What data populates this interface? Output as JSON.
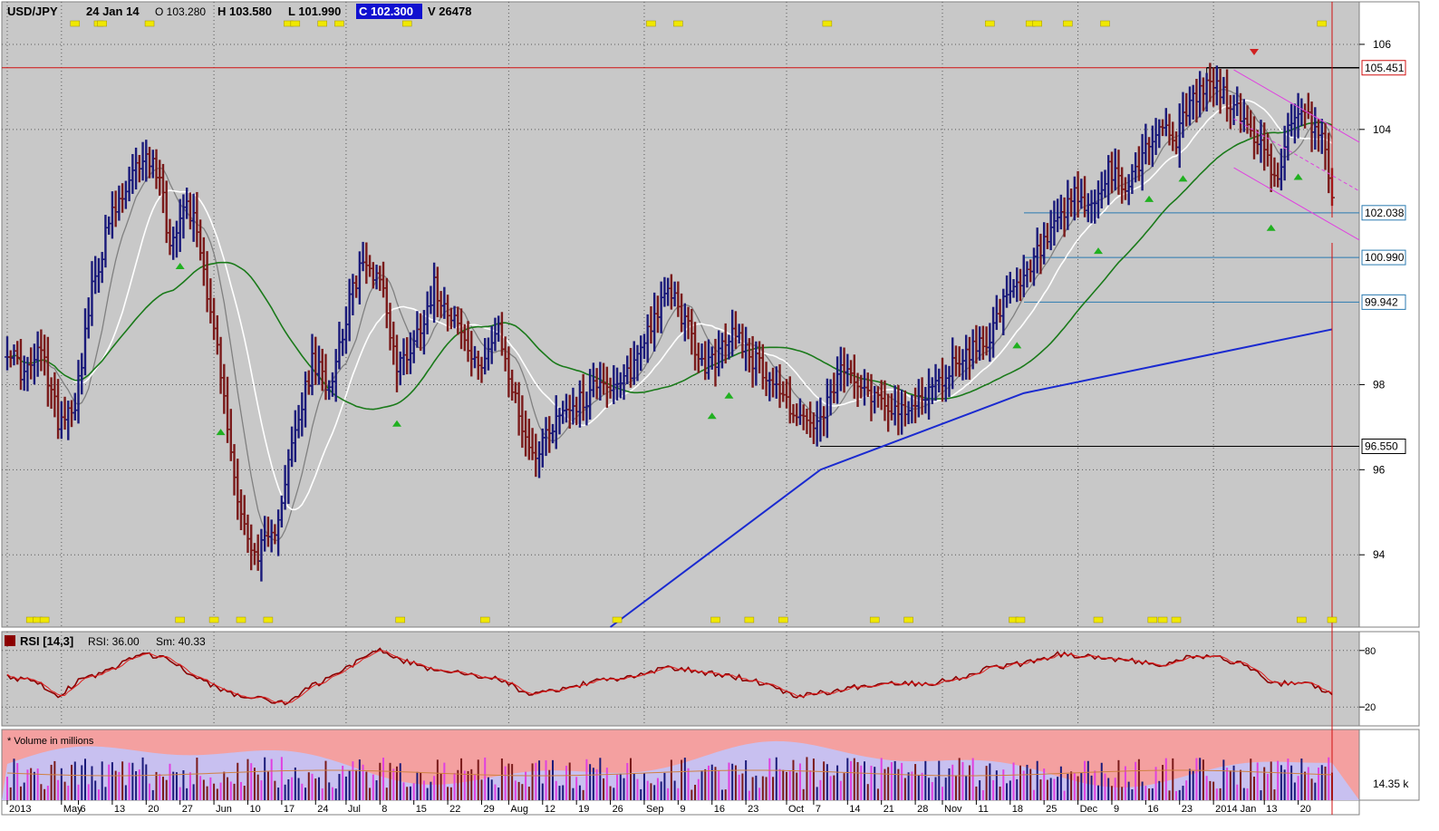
{
  "header": {
    "symbol": "USD/JPY",
    "date": "24 Jan 14",
    "open": "O 103.280",
    "high": "H 103.580",
    "low": "L 101.990",
    "close": "C 102.300",
    "volume": "V 26478"
  },
  "colors": {
    "background": "#c8c8c8",
    "up_bar": "#1a1a7a",
    "down_bar": "#7a1a1a",
    "ma_fast": "#808080",
    "ma_mid": "#ffffff",
    "ma_slow": "#1a7a1a",
    "ma_long": "#1a2ad0",
    "resistance": "#d01010",
    "channel": "#e040e0",
    "support": "#2a7ab0",
    "rsi": "#8b0000",
    "rsi_signal": "#e02020",
    "volume_top": "#f4a0a0",
    "volume_band": "#c8c0f0",
    "marker": "#f0e800",
    "signal_up": "#20b020",
    "signal_down": "#d02020"
  },
  "price_axis": {
    "ticks": [
      "106",
      "104",
      "98",
      "96",
      "94"
    ],
    "tick_values": [
      106,
      104,
      98,
      96,
      94
    ],
    "range": [
      92.3,
      107
    ]
  },
  "price_levels": [
    {
      "label": "105.451",
      "value": 105.45,
      "kind": "resistance"
    },
    {
      "label": "102.038",
      "value": 102.04,
      "kind": "support"
    },
    {
      "label": "100.990",
      "value": 100.99,
      "kind": "support"
    },
    {
      "label": "99.942",
      "value": 99.94,
      "kind": "support"
    },
    {
      "label": "96.550",
      "value": 96.55,
      "kind": "support"
    }
  ],
  "rsi_panel": {
    "title": "RSI [14,3]",
    "value_text": "RSI: 36.00",
    "smooth_text": "Sm: 40.33",
    "ticks": [
      "80",
      "20"
    ],
    "tick_values": [
      80,
      20
    ],
    "range": [
      0,
      100
    ]
  },
  "volume_panel": {
    "title": "* Volume in millions",
    "axis_label": "14.35 k"
  },
  "time_axis": {
    "labels": [
      "2013",
      "May",
      "6",
      "13",
      "20",
      "27",
      "Jun",
      "10",
      "17",
      "24",
      "Jul",
      "8",
      "15",
      "22",
      "29",
      "Aug",
      "12",
      "19",
      "26",
      "Sep",
      "9",
      "16",
      "23",
      "Oct",
      "7",
      "14",
      "21",
      "28",
      "Nov",
      "11",
      "18",
      "25",
      "Dec",
      "9",
      "16",
      "23",
      "2014 Jan",
      "13",
      "20"
    ],
    "bar_index": [
      0,
      16,
      21,
      31,
      41,
      51,
      61,
      71,
      81,
      91,
      100,
      110,
      120,
      130,
      140,
      148,
      158,
      168,
      178,
      188,
      198,
      208,
      218,
      230,
      238,
      248,
      258,
      268,
      276,
      286,
      296,
      306,
      316,
      326,
      336,
      346,
      356,
      371,
      381
    ]
  },
  "chart_data": {
    "type": "ohlc",
    "bar_count": 392,
    "price_anchors": [
      [
        0,
        98.9
      ],
      [
        5,
        98.2
      ],
      [
        10,
        98.8
      ],
      [
        15,
        97.2
      ],
      [
        20,
        97.6
      ],
      [
        25,
        100.2
      ],
      [
        30,
        101.8
      ],
      [
        35,
        102.5
      ],
      [
        40,
        103.4
      ],
      [
        45,
        103
      ],
      [
        48,
        101.2
      ],
      [
        52,
        102.4
      ],
      [
        56,
        101.7
      ],
      [
        62,
        98.8
      ],
      [
        67,
        95.8
      ],
      [
        72,
        94
      ],
      [
        78,
        94.3
      ],
      [
        84,
        96.5
      ],
      [
        90,
        98.5
      ],
      [
        95,
        98
      ],
      [
        100,
        99.6
      ],
      [
        104,
        100.8
      ],
      [
        110,
        100.6
      ],
      [
        115,
        98.4
      ],
      [
        120,
        99
      ],
      [
        126,
        100.3
      ],
      [
        132,
        99.6
      ],
      [
        138,
        98.4
      ],
      [
        145,
        99.2
      ],
      [
        150,
        97.6
      ],
      [
        155,
        96.3
      ],
      [
        160,
        97
      ],
      [
        165,
        97.5
      ],
      [
        170,
        97.6
      ],
      [
        175,
        98.2
      ],
      [
        180,
        97.8
      ],
      [
        185,
        98.5
      ],
      [
        190,
        99.5
      ],
      [
        196,
        100.2
      ],
      [
        200,
        99.5
      ],
      [
        205,
        98.4
      ],
      [
        210,
        98.7
      ],
      [
        215,
        99.3
      ],
      [
        220,
        98.6
      ],
      [
        225,
        98.2
      ],
      [
        230,
        97.6
      ],
      [
        235,
        97.1
      ],
      [
        240,
        97
      ],
      [
        245,
        98.2
      ],
      [
        250,
        98.3
      ],
      [
        255,
        97.8
      ],
      [
        260,
        97.6
      ],
      [
        265,
        97.2
      ],
      [
        270,
        97.8
      ],
      [
        275,
        98
      ],
      [
        280,
        98.6
      ],
      [
        285,
        98.8
      ],
      [
        290,
        99.2
      ],
      [
        295,
        100
      ],
      [
        300,
        100.4
      ],
      [
        305,
        101.2
      ],
      [
        310,
        101.7
      ],
      [
        315,
        102.4
      ],
      [
        320,
        102.1
      ],
      [
        325,
        103
      ],
      [
        330,
        102.6
      ],
      [
        335,
        103.4
      ],
      [
        340,
        104.1
      ],
      [
        345,
        103.8
      ],
      [
        350,
        104.7
      ],
      [
        355,
        105.1
      ],
      [
        358,
        104.9
      ],
      [
        362,
        104.5
      ],
      [
        366,
        104.1
      ],
      [
        370,
        103.6
      ],
      [
        374,
        102.8
      ],
      [
        378,
        103.9
      ],
      [
        382,
        104.3
      ],
      [
        386,
        104.1
      ],
      [
        389,
        103.6
      ],
      [
        391,
        102.3
      ]
    ],
    "ma_fast_offset": 0,
    "moving_averages": [
      {
        "key": "ma_fast",
        "period": 10
      },
      {
        "key": "ma_mid",
        "period": 20
      },
      {
        "key": "ma_slow",
        "period": 50
      }
    ],
    "ma_long": {
      "points": [
        [
          178,
          92.3
        ],
        [
          240,
          96
        ],
        [
          300,
          97.8
        ],
        [
          391,
          99.3
        ]
      ]
    },
    "channel": {
      "upper": [
        [
          362,
          105.4
        ],
        [
          391,
          104.2
        ]
      ],
      "lower": [
        [
          362,
          103.1
        ],
        [
          391,
          101.8
        ]
      ]
    },
    "signals_up": [
      51,
      63,
      115,
      208,
      213,
      298,
      322,
      337,
      347,
      373,
      381
    ],
    "signals_down": [
      368
    ],
    "event_markers_top": [
      20,
      27,
      28,
      42,
      83,
      85,
      93,
      98,
      118,
      190,
      198,
      242,
      290,
      302,
      304,
      313,
      324,
      388
    ],
    "event_markers_bottom": [
      7,
      9,
      11,
      51,
      61,
      69,
      77,
      116,
      141,
      180,
      209,
      219,
      229,
      256,
      266,
      297,
      299,
      322,
      338,
      341,
      345,
      382,
      391
    ],
    "rsi": {
      "values": [
        [
          0,
          52
        ],
        [
          8,
          48
        ],
        [
          15,
          32
        ],
        [
          22,
          50
        ],
        [
          30,
          58
        ],
        [
          40,
          78
        ],
        [
          48,
          70
        ],
        [
          55,
          52
        ],
        [
          65,
          35
        ],
        [
          75,
          28
        ],
        [
          82,
          24
        ],
        [
          90,
          42
        ],
        [
          100,
          60
        ],
        [
          108,
          82
        ],
        [
          118,
          68
        ],
        [
          125,
          60
        ],
        [
          135,
          55
        ],
        [
          145,
          50
        ],
        [
          155,
          32
        ],
        [
          165,
          40
        ],
        [
          175,
          48
        ],
        [
          185,
          52
        ],
        [
          195,
          62
        ],
        [
          205,
          57
        ],
        [
          215,
          52
        ],
        [
          225,
          44
        ],
        [
          232,
          32
        ],
        [
          242,
          36
        ],
        [
          252,
          42
        ],
        [
          262,
          46
        ],
        [
          272,
          45
        ],
        [
          282,
          52
        ],
        [
          290,
          62
        ],
        [
          300,
          66
        ],
        [
          310,
          76
        ],
        [
          320,
          74
        ],
        [
          330,
          70
        ],
        [
          340,
          64
        ],
        [
          350,
          74
        ],
        [
          358,
          72
        ],
        [
          366,
          64
        ],
        [
          374,
          44
        ],
        [
          382,
          46
        ],
        [
          391,
          36
        ]
      ]
    },
    "volume": {
      "bar_seed": 17,
      "average_level": 0.38
    }
  }
}
